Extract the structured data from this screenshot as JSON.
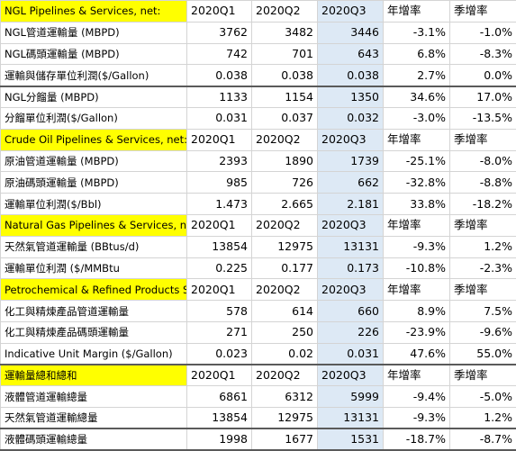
{
  "sections": [
    {
      "title": "NGL Pipelines & Services, net:",
      "headers": [
        "2020Q1",
        "2020Q2",
        "2020Q3",
        "年增率",
        "季增率"
      ],
      "rows": [
        {
          "label": "NGL管道運輸量 (MBPD)",
          "values": [
            "3762",
            "3482",
            "3446",
            "-3.1%",
            "-1.0%"
          ]
        },
        {
          "label": "NGL碼頭運輸量 (MBPD)",
          "values": [
            "742",
            "701",
            "643",
            "6.8%",
            "-8.3%"
          ]
        },
        {
          "label": "運輸與儲存單位利潤($/Gallon)",
          "values": [
            "0.038",
            "0.038",
            "0.038",
            "2.7%",
            "0.0%"
          ]
        },
        {
          "label": "NGL分餾量 (MBPD)",
          "values": [
            "1133",
            "1154",
            "1350",
            "34.6%",
            "17.0%"
          ]
        },
        {
          "label": "分餾單位利潤($/Gallon)",
          "values": [
            "0.031",
            "0.037",
            "0.032",
            "-3.0%",
            "-13.5%"
          ]
        }
      ]
    },
    {
      "title": "Crude Oil Pipelines & Services, net:",
      "headers": [
        "2020Q1",
        "2020Q2",
        "2020Q3",
        "年增率",
        "季增率"
      ],
      "rows": [
        {
          "label": "原油管道運輸量 (MBPD)",
          "values": [
            "2393",
            "1890",
            "1739",
            "-25.1%",
            "-8.0%"
          ]
        },
        {
          "label": "原油碼頭運輸量 (MBPD)",
          "values": [
            "985",
            "726",
            "662",
            "-32.8%",
            "-8.8%"
          ]
        },
        {
          "label": "運輸單位利潤($/Bbl)",
          "values": [
            "1.473",
            "2.665",
            "2.181",
            "33.8%",
            "-18.2%"
          ]
        }
      ]
    },
    {
      "title": "Natural Gas Pipelines & Services, net",
      "headers": [
        "2020Q1",
        "2020Q2",
        "2020Q3",
        "年增率",
        "季增率"
      ],
      "rows": [
        {
          "label": "天然氣管道運輸量 (BBtus/d)",
          "values": [
            "13854",
            "12975",
            "13131",
            "-9.3%",
            "1.2%"
          ]
        },
        {
          "label": "運輸單位利潤 ($/MMBtu",
          "values": [
            "0.225",
            "0.177",
            "0.173",
            "-10.8%",
            "-2.3%"
          ]
        }
      ]
    },
    {
      "title": "Petrochemical & Refined Products Serv",
      "headers": [
        "2020Q1",
        "2020Q2",
        "2020Q3",
        "年增率",
        "季增率"
      ],
      "rows": [
        {
          "label": "化工與精煉產品管道運輸量",
          "values": [
            "578",
            "614",
            "660",
            "8.9%",
            "7.5%"
          ]
        },
        {
          "label": "化工與精煉產品碼頭運輸量",
          "values": [
            "271",
            "250",
            "226",
            "-23.9%",
            "-9.6%"
          ]
        },
        {
          "label": "Indicative Unit Margin ($/Gallon)",
          "values": [
            "0.023",
            "0.02",
            "0.031",
            "47.6%",
            "55.0%"
          ]
        }
      ]
    },
    {
      "title": "運輸量總和總和",
      "headers": [
        "2020Q1",
        "2020Q2",
        "2020Q3",
        "年增率",
        "季增率"
      ],
      "rows": [
        {
          "label": "液體管道運輸總量",
          "values": [
            "6861",
            "6312",
            "5999",
            "-9.4%",
            "-5.0%"
          ]
        },
        {
          "label": "天然氣管道運輸總量",
          "values": [
            "13854",
            "12975",
            "13131",
            "-9.3%",
            "1.2%"
          ]
        },
        {
          "label": "液體碼頭運輸總量",
          "values": [
            "1998",
            "1677",
            "1531",
            "-18.7%",
            "-8.7%"
          ]
        }
      ]
    }
  ],
  "colors": {
    "highlight": "#ffff00",
    "q3_column": "#dde9f5",
    "grid": "#d4d4d4"
  }
}
